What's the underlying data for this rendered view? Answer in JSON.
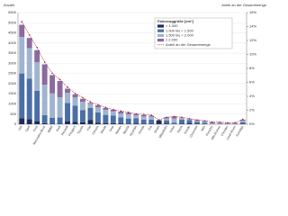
{
  "chart_data": {
    "type": "stacked-bar-line",
    "y_label": "Anzahl",
    "y2_label": "Anteil an der Gesamtmenge",
    "legend_title": "Fahrzeuggröße [cm³]",
    "categories": [
      "VW",
      "Opel",
      "Ford",
      "Mercedes-Benz",
      "BMW",
      "Audi",
      "Renault",
      "Peugeot",
      "Toyota",
      "Fiat",
      "Citroen",
      "Skoda",
      "Seat",
      "Nissan",
      "Mazda",
      "Hyundai",
      "Honda",
      "Kia",
      "Smart",
      "Mitsubishi",
      "Volvo",
      "Dacia",
      "Suzuki",
      "Chevrolet",
      "Mini",
      "Porsche",
      "Alfa Romeo",
      "Chrysler",
      "Land Rover",
      "Sonstige"
    ],
    "series": [
      {
        "name": "< 1.000",
        "color": "#1f2a5a",
        "values": [
          300,
          250,
          150,
          50,
          20,
          30,
          150,
          120,
          100,
          200,
          80,
          60,
          50,
          40,
          30,
          40,
          30,
          30,
          180,
          40,
          0,
          20,
          60,
          20,
          0,
          0,
          0,
          0,
          0,
          30
        ]
      },
      {
        "name": "1.000 bis < 1.500",
        "color": "#4a6fa5",
        "values": [
          2200,
          2000,
          1500,
          400,
          300,
          300,
          900,
          800,
          600,
          600,
          500,
          400,
          380,
          300,
          250,
          250,
          200,
          200,
          20,
          150,
          80,
          200,
          150,
          100,
          80,
          0,
          20,
          0,
          0,
          60
        ]
      },
      {
        "name": "1.500 bis < 2.000",
        "color": "#9fb4cf",
        "values": [
          1800,
          1500,
          1400,
          1500,
          1200,
          1000,
          500,
          400,
          400,
          200,
          250,
          250,
          200,
          180,
          200,
          150,
          150,
          140,
          0,
          100,
          200,
          80,
          40,
          60,
          70,
          30,
          50,
          20,
          20,
          80
        ]
      },
      {
        "name": "≥ 2.000",
        "color": "#8c6a9e",
        "values": [
          600,
          500,
          600,
          1000,
          900,
          800,
          200,
          150,
          150,
          50,
          100,
          90,
          80,
          100,
          80,
          60,
          70,
          50,
          0,
          50,
          100,
          20,
          20,
          30,
          20,
          60,
          20,
          40,
          40,
          50
        ]
      },
      {
        "name": "Anteil an der Gesamtmenge",
        "color": "#a3213a",
        "axis": "y2",
        "values": [
          14.7,
          12.8,
          11.0,
          8.9,
          7.3,
          6.4,
          5.3,
          4.4,
          3.8,
          3.2,
          2.8,
          2.4,
          2.1,
          1.9,
          1.7,
          1.5,
          1.4,
          1.3,
          0.6,
          1.0,
          1.1,
          1.0,
          0.8,
          0.6,
          0.5,
          0.3,
          0.3,
          0.2,
          0.2,
          0.7
        ]
      }
    ],
    "ylim": [
      0,
      5500
    ],
    "yticks": [
      0,
      500,
      1000,
      1500,
      2000,
      2500,
      3000,
      3500,
      4000,
      4500,
      5000,
      5500
    ],
    "y2lim": [
      0,
      16
    ],
    "y2ticks": [
      {
        "value": 0,
        "label": "0%"
      },
      {
        "value": 2,
        "label": "2%"
      },
      {
        "value": 4,
        "label": "4%"
      },
      {
        "value": 6,
        "label": "6%"
      },
      {
        "value": 8,
        "label": "8%"
      },
      {
        "value": 10,
        "label": "10%"
      },
      {
        "value": 12,
        "label": "12%"
      },
      {
        "value": 14,
        "label": "14%"
      },
      {
        "value": 16,
        "label": "16%"
      }
    ],
    "grid": true
  }
}
